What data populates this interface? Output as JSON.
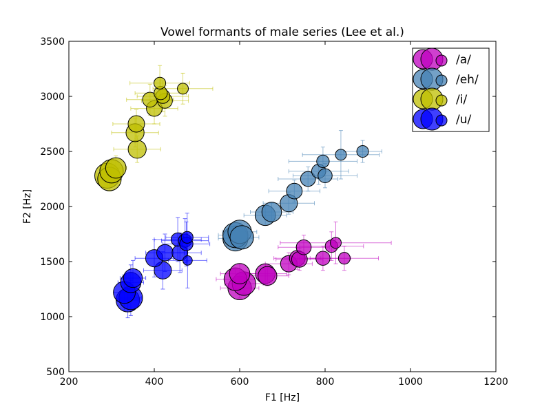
{
  "chart_data": {
    "type": "scatter",
    "title": "Vowel formants of male series (Lee et al.)",
    "xlabel": "F1 [Hz]",
    "ylabel": "F2 [Hz]",
    "xlim": [
      200,
      1200
    ],
    "ylim": [
      500,
      3500
    ],
    "xticks": [
      200,
      400,
      600,
      800,
      1000,
      1200
    ],
    "yticks": [
      500,
      1000,
      1500,
      2000,
      2500,
      3000,
      3500
    ],
    "grid": false,
    "legend_position": "top-right",
    "series": [
      {
        "name": "/a/",
        "color": "#bf00bf",
        "points": [
          {
            "x": 600,
            "y": 1260,
            "size": 3.0,
            "xerr": 45,
            "yerr": 90
          },
          {
            "x": 610,
            "y": 1300,
            "size": 3.0,
            "xerr": 45,
            "yerr": 90
          },
          {
            "x": 590,
            "y": 1340,
            "size": 2.9,
            "xerr": 45,
            "yerr": 90
          },
          {
            "x": 600,
            "y": 1390,
            "size": 2.6,
            "xerr": 45,
            "yerr": 90
          },
          {
            "x": 660,
            "y": 1390,
            "size": 2.5,
            "xerr": 50,
            "yerr": 90
          },
          {
            "x": 665,
            "y": 1370,
            "size": 2.4,
            "xerr": 50,
            "yerr": 90
          },
          {
            "x": 715,
            "y": 1480,
            "size": 2.1,
            "xerr": 55,
            "yerr": 100
          },
          {
            "x": 735,
            "y": 1530,
            "size": 2.0,
            "xerr": 55,
            "yerr": 100
          },
          {
            "x": 740,
            "y": 1520,
            "size": 2.0,
            "xerr": 55,
            "yerr": 100
          },
          {
            "x": 750,
            "y": 1630,
            "size": 1.9,
            "xerr": 60,
            "yerr": 110
          },
          {
            "x": 795,
            "y": 1530,
            "size": 1.8,
            "xerr": 65,
            "yerr": 110
          },
          {
            "x": 815,
            "y": 1640,
            "size": 1.6,
            "xerr": 75,
            "yerr": 130
          },
          {
            "x": 825,
            "y": 1670,
            "size": 1.4,
            "xerr": 130,
            "yerr": 190
          },
          {
            "x": 845,
            "y": 1530,
            "size": 1.5,
            "xerr": 80,
            "yerr": 110
          }
        ]
      },
      {
        "name": "/eh/",
        "color": "#4682b4",
        "points": [
          {
            "x": 590,
            "y": 1710,
            "size": 3.2,
            "xerr": 40,
            "yerr": 80
          },
          {
            "x": 590,
            "y": 1740,
            "size": 3.2,
            "xerr": 40,
            "yerr": 80
          },
          {
            "x": 600,
            "y": 1770,
            "size": 3.0,
            "xerr": 40,
            "yerr": 80
          },
          {
            "x": 605,
            "y": 1720,
            "size": 3.0,
            "xerr": 40,
            "yerr": 80
          },
          {
            "x": 660,
            "y": 1920,
            "size": 2.6,
            "xerr": 50,
            "yerr": 90
          },
          {
            "x": 675,
            "y": 1950,
            "size": 2.5,
            "xerr": 50,
            "yerr": 90
          },
          {
            "x": 715,
            "y": 2030,
            "size": 2.2,
            "xerr": 60,
            "yerr": 100
          },
          {
            "x": 728,
            "y": 2140,
            "size": 2.0,
            "xerr": 60,
            "yerr": 100
          },
          {
            "x": 760,
            "y": 2250,
            "size": 1.9,
            "xerr": 70,
            "yerr": 110
          },
          {
            "x": 785,
            "y": 2320,
            "size": 1.8,
            "xerr": 70,
            "yerr": 120
          },
          {
            "x": 800,
            "y": 2280,
            "size": 1.8,
            "xerr": 75,
            "yerr": 110
          },
          {
            "x": 795,
            "y": 2410,
            "size": 1.6,
            "xerr": 80,
            "yerr": 130
          },
          {
            "x": 837,
            "y": 2470,
            "size": 1.4,
            "xerr": 90,
            "yerr": 220
          },
          {
            "x": 888,
            "y": 2500,
            "size": 1.5,
            "xerr": 45,
            "yerr": 100
          }
        ]
      },
      {
        "name": "/i/",
        "color": "#bfbf00",
        "points": [
          {
            "x": 290,
            "y": 2280,
            "size": 3.2,
            "xerr": 25,
            "yerr": 110
          },
          {
            "x": 295,
            "y": 2250,
            "size": 3.0,
            "xerr": 25,
            "yerr": 110
          },
          {
            "x": 300,
            "y": 2320,
            "size": 3.0,
            "xerr": 25,
            "yerr": 110
          },
          {
            "x": 310,
            "y": 2350,
            "size": 2.6,
            "xerr": 25,
            "yerr": 110
          },
          {
            "x": 360,
            "y": 2520,
            "size": 2.3,
            "xerr": 55,
            "yerr": 120
          },
          {
            "x": 355,
            "y": 2670,
            "size": 2.3,
            "xerr": 55,
            "yerr": 130
          },
          {
            "x": 358,
            "y": 2750,
            "size": 2.1,
            "xerr": 55,
            "yerr": 130
          },
          {
            "x": 400,
            "y": 2890,
            "size": 2.0,
            "xerr": 55,
            "yerr": 140
          },
          {
            "x": 390,
            "y": 2970,
            "size": 1.9,
            "xerr": 55,
            "yerr": 140
          },
          {
            "x": 425,
            "y": 2960,
            "size": 1.9,
            "xerr": 55,
            "yerr": 140
          },
          {
            "x": 420,
            "y": 3000,
            "size": 1.8,
            "xerr": 60,
            "yerr": 140
          },
          {
            "x": 415,
            "y": 3030,
            "size": 1.7,
            "xerr": 60,
            "yerr": 140
          },
          {
            "x": 413,
            "y": 3120,
            "size": 1.5,
            "xerr": 70,
            "yerr": 160
          },
          {
            "x": 467,
            "y": 3070,
            "size": 1.4,
            "xerr": 70,
            "yerr": 140
          }
        ]
      },
      {
        "name": "/u/",
        "color": "#0000ff",
        "points": [
          {
            "x": 338,
            "y": 1150,
            "size": 3.0,
            "xerr": 25,
            "yerr": 160
          },
          {
            "x": 345,
            "y": 1170,
            "size": 3.0,
            "xerr": 25,
            "yerr": 160
          },
          {
            "x": 330,
            "y": 1220,
            "size": 2.8,
            "xerr": 25,
            "yerr": 160
          },
          {
            "x": 345,
            "y": 1310,
            "size": 2.6,
            "xerr": 30,
            "yerr": 160
          },
          {
            "x": 350,
            "y": 1350,
            "size": 2.4,
            "xerr": 30,
            "yerr": 160
          },
          {
            "x": 420,
            "y": 1420,
            "size": 2.2,
            "xerr": 45,
            "yerr": 170
          },
          {
            "x": 400,
            "y": 1530,
            "size": 2.2,
            "xerr": 45,
            "yerr": 170
          },
          {
            "x": 425,
            "y": 1580,
            "size": 2.1,
            "xerr": 45,
            "yerr": 170
          },
          {
            "x": 460,
            "y": 1580,
            "size": 2.0,
            "xerr": 50,
            "yerr": 180
          },
          {
            "x": 455,
            "y": 1700,
            "size": 1.7,
            "xerr": 55,
            "yerr": 200
          },
          {
            "x": 472,
            "y": 1690,
            "size": 1.7,
            "xerr": 55,
            "yerr": 200
          },
          {
            "x": 475,
            "y": 1660,
            "size": 1.7,
            "xerr": 55,
            "yerr": 200
          },
          {
            "x": 477,
            "y": 1720,
            "size": 1.5,
            "xerr": 50,
            "yerr": 220
          },
          {
            "x": 478,
            "y": 1510,
            "size": 1.2,
            "xerr": 45,
            "yerr": 250
          }
        ]
      }
    ]
  }
}
